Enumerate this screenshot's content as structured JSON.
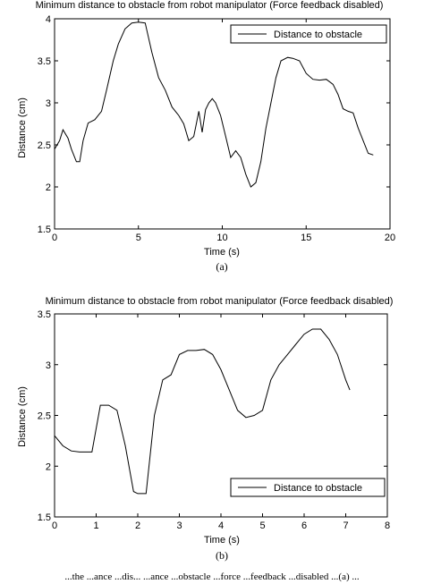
{
  "chart_data": [
    {
      "type": "line",
      "title": "Minimum distance to obstacle from robot manipulator (Force feedback disabled)",
      "xlabel": "Time (s)",
      "ylabel": "Distance (cm)",
      "xlim": [
        0,
        20
      ],
      "ylim": [
        1.5,
        4
      ],
      "xticks": [
        "0",
        "5",
        "10",
        "15",
        "20"
      ],
      "yticks": [
        "1.5",
        "2",
        "2.5",
        "3",
        "3.5",
        "4"
      ],
      "legend": "top-right",
      "series": [
        {
          "name": "Distance to obstacle",
          "x": [
            0,
            0.3,
            0.5,
            0.8,
            1.0,
            1.3,
            1.5,
            1.7,
            2.0,
            2.4,
            2.8,
            3.1,
            3.5,
            3.8,
            4.2,
            4.6,
            5.0,
            5.4,
            5.8,
            6.2,
            6.6,
            7.0,
            7.4,
            7.7,
            8.0,
            8.3,
            8.6,
            8.8,
            9.0,
            9.2,
            9.4,
            9.6,
            9.9,
            10.2,
            10.5,
            10.8,
            11.1,
            11.4,
            11.7,
            12.0,
            12.3,
            12.6,
            12.9,
            13.2,
            13.5,
            13.9,
            14.2,
            14.6,
            15.0,
            15.4,
            15.8,
            16.2,
            16.6,
            16.9,
            17.2,
            17.5,
            17.8,
            18.1,
            18.4,
            18.7,
            19.0
          ],
          "y": [
            2.45,
            2.55,
            2.68,
            2.58,
            2.45,
            2.3,
            2.3,
            2.55,
            2.76,
            2.8,
            2.9,
            3.15,
            3.5,
            3.7,
            3.88,
            3.95,
            3.96,
            3.95,
            3.6,
            3.3,
            3.15,
            2.95,
            2.85,
            2.75,
            2.55,
            2.6,
            2.9,
            2.65,
            2.92,
            3.0,
            3.05,
            3.0,
            2.85,
            2.6,
            2.35,
            2.43,
            2.35,
            2.15,
            2.0,
            2.05,
            2.3,
            2.7,
            3.0,
            3.3,
            3.5,
            3.54,
            3.53,
            3.5,
            3.35,
            3.28,
            3.27,
            3.28,
            3.22,
            3.1,
            2.93,
            2.9,
            2.88,
            2.7,
            2.55,
            2.4,
            2.38
          ]
        }
      ]
    },
    {
      "type": "line",
      "title": "Minimum distance to obstacle from robot manipulator (Force feedback disabled)",
      "xlabel": "Time (s)",
      "ylabel": "Distance (cm)",
      "xlim": [
        0,
        8
      ],
      "ylim": [
        1.5,
        3.5
      ],
      "xticks": [
        "0",
        "1",
        "2",
        "3",
        "4",
        "5",
        "6",
        "7",
        "8"
      ],
      "yticks": [
        "1.5",
        "2",
        "2.5",
        "3",
        "3.5"
      ],
      "legend": "bottom-right",
      "series": [
        {
          "name": "Distance to obstacle",
          "x": [
            0,
            0.2,
            0.4,
            0.6,
            0.9,
            1.1,
            1.3,
            1.5,
            1.7,
            1.9,
            2.0,
            2.2,
            2.4,
            2.6,
            2.8,
            3.0,
            3.2,
            3.4,
            3.6,
            3.8,
            4.0,
            4.2,
            4.4,
            4.6,
            4.8,
            5.0,
            5.2,
            5.4,
            5.6,
            5.8,
            6.0,
            6.2,
            6.4,
            6.6,
            6.8,
            7.0,
            7.1
          ],
          "y": [
            2.3,
            2.2,
            2.15,
            2.14,
            2.14,
            2.6,
            2.6,
            2.55,
            2.2,
            1.75,
            1.73,
            1.73,
            2.5,
            2.85,
            2.9,
            3.1,
            3.14,
            3.14,
            3.15,
            3.1,
            2.95,
            2.75,
            2.55,
            2.48,
            2.5,
            2.55,
            2.85,
            3.0,
            3.1,
            3.2,
            3.3,
            3.35,
            3.35,
            3.25,
            3.1,
            2.85,
            2.75
          ]
        }
      ]
    }
  ],
  "captions": {
    "sub_a": "(a)",
    "sub_b": "(b)",
    "bottom_fragment": "...the ...ance ...dis... ...ance ...obstacle ...force ...feedback ...disabled ...(a) ..."
  },
  "style": {
    "line_color": "#000000",
    "axis_color": "#000000",
    "background": "#ffffff"
  }
}
